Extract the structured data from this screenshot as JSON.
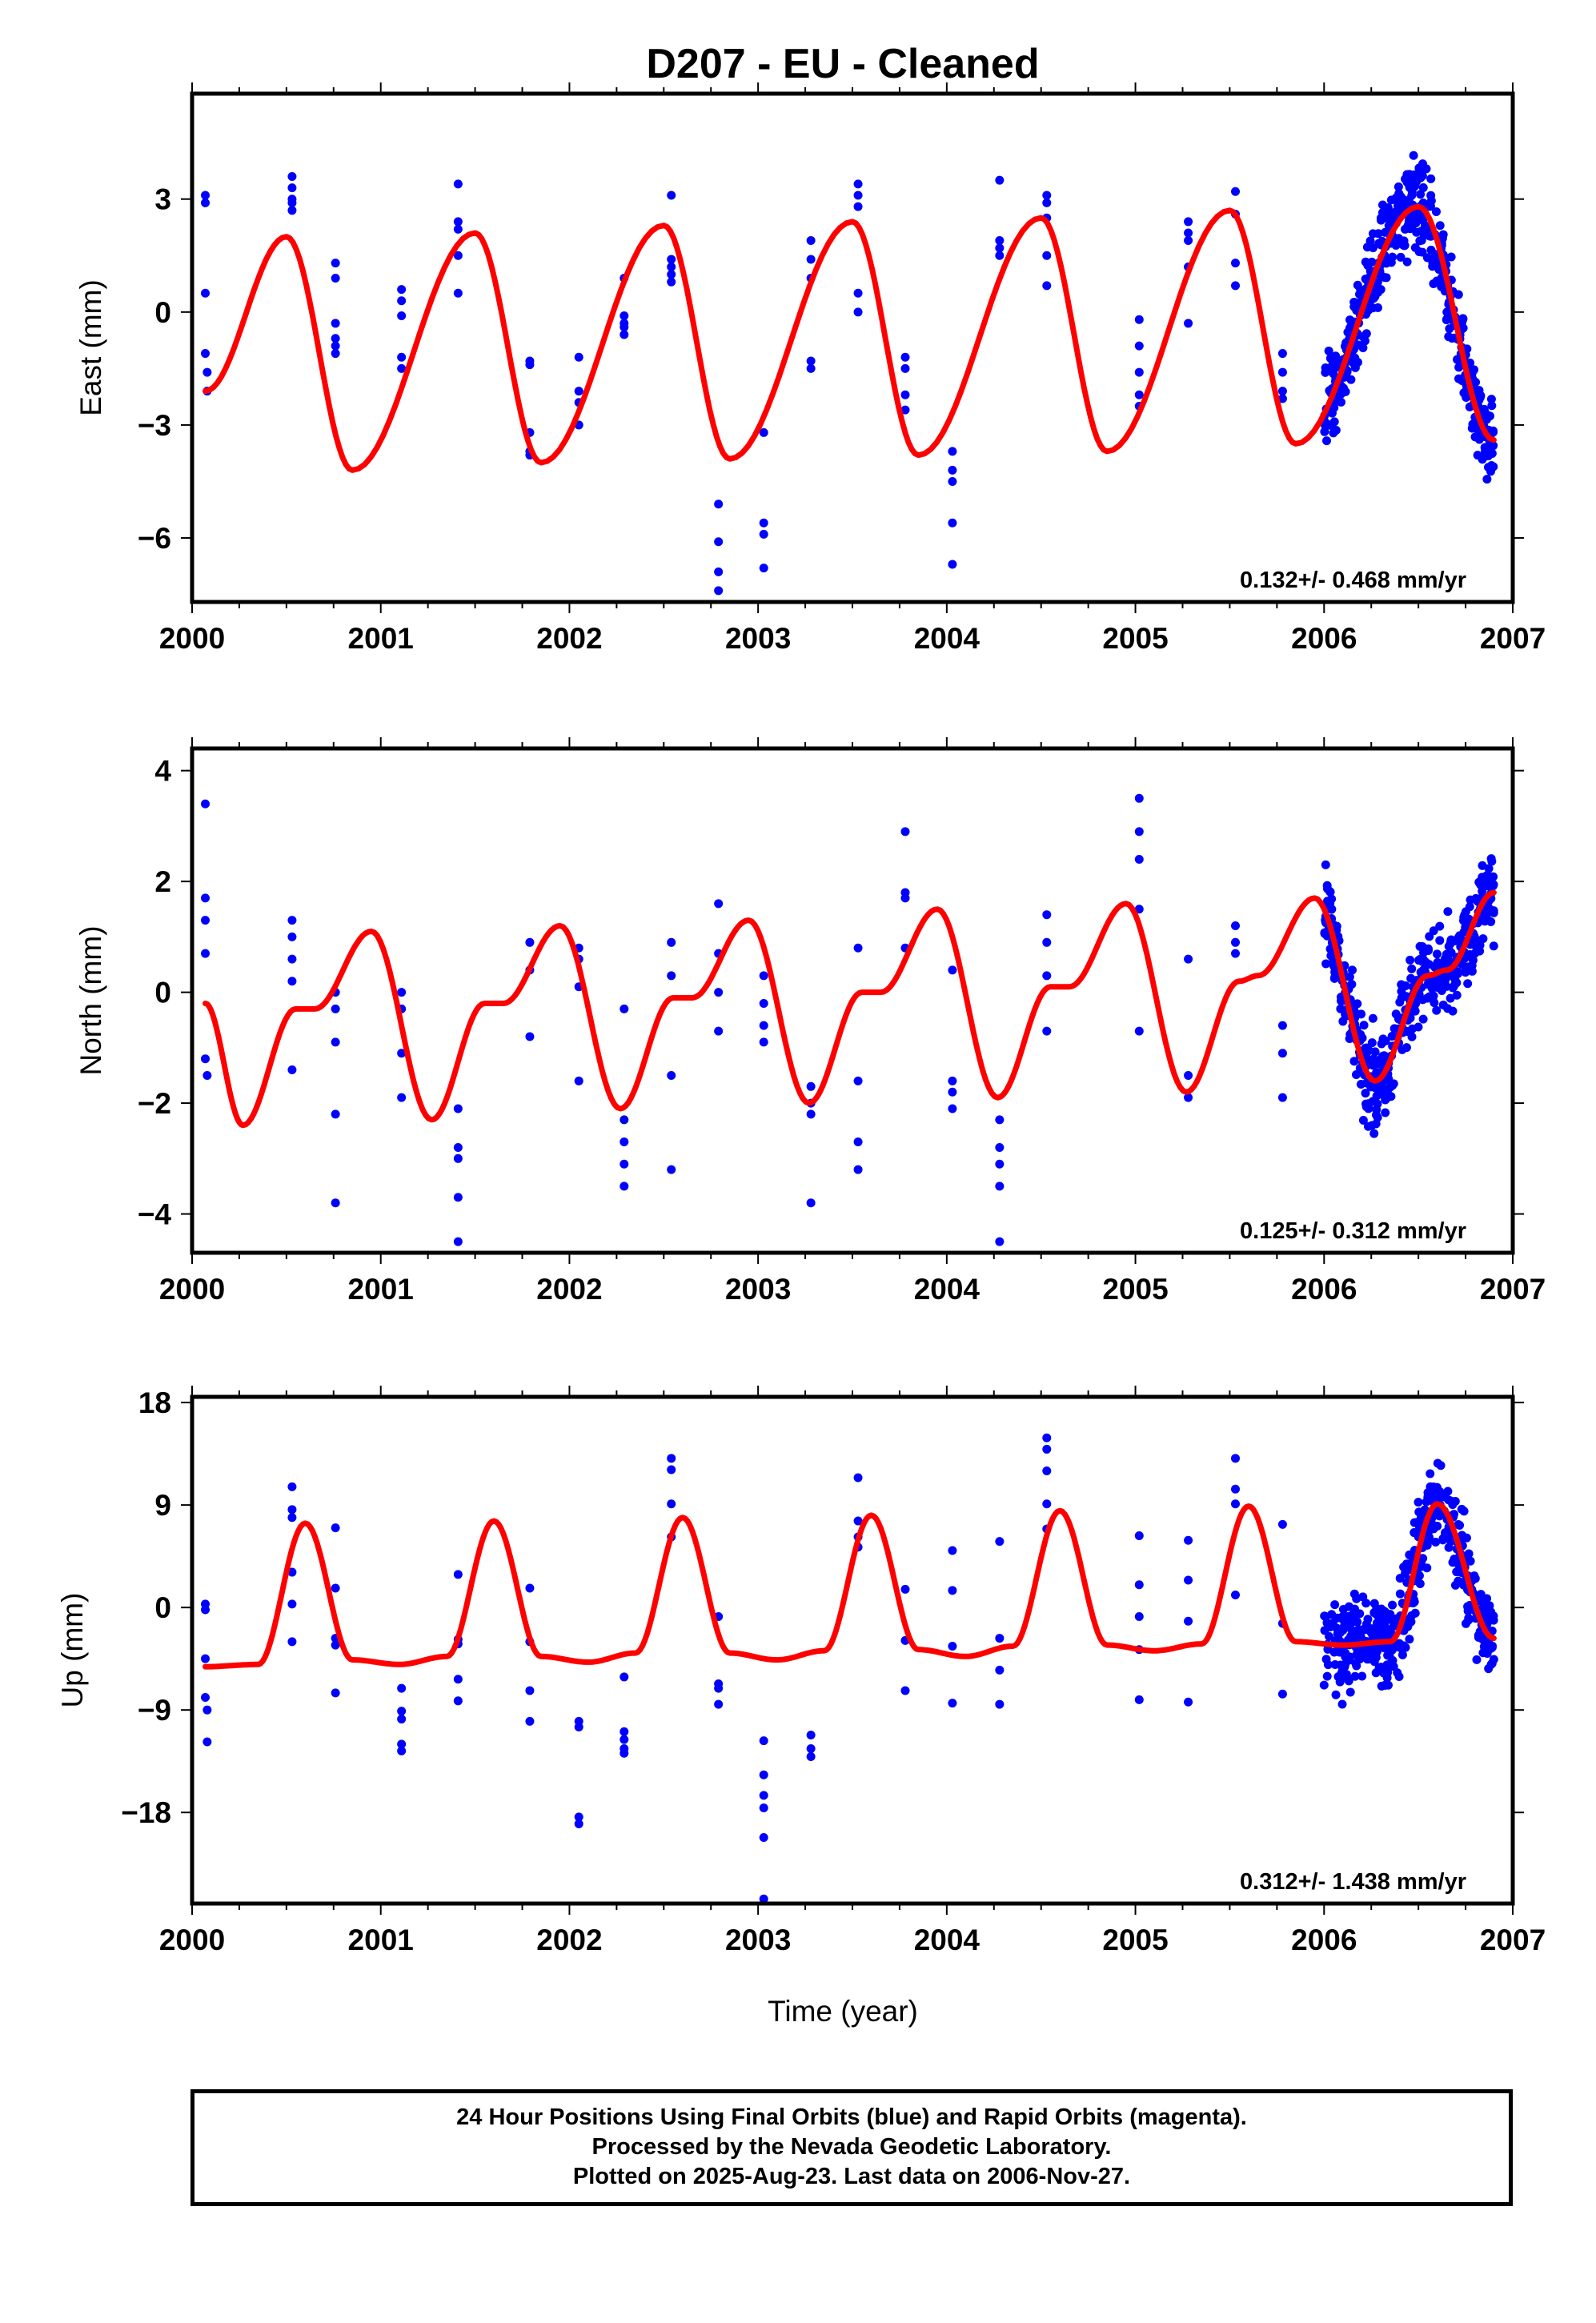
{
  "figure": {
    "title": "D207  - EU - Cleaned",
    "xlabel": "Time (year)",
    "footer": [
      "24 Hour Positions Using Final Orbits (blue) and Rapid Orbits (magenta).",
      "Processed by the Nevada Geodetic Laboratory.",
      "Plotted on 2025-Aug-23. Last data on 2006-Nov-27."
    ],
    "colors": {
      "points": "#0000ff",
      "model": "#ff0000",
      "frame": "#000000"
    }
  },
  "chart_data": [
    {
      "type": "scatter",
      "ylabel": "East (mm)",
      "rate_label": "0.132+/- 0.468 mm/yr",
      "xlim": [
        2000.0,
        2007.0
      ],
      "ylim": [
        -7.7,
        5.8
      ],
      "xticks": [
        2000,
        2001,
        2002,
        2003,
        2004,
        2005,
        2006,
        2007
      ],
      "yticks": [
        3,
        0,
        -3,
        -6
      ],
      "grid": false,
      "series": [
        {
          "role": "observations",
          "color": "#0000ff",
          "x": [
            2000.07,
            2000.07,
            2000.07,
            2000.07,
            2000.08,
            2000.08,
            2000.53,
            2000.53,
            2000.53,
            2000.53,
            2000.53,
            2000.76,
            2000.76,
            2000.76,
            2000.76,
            2000.76,
            2000.76,
            2001.11,
            2001.11,
            2001.11,
            2001.11,
            2001.11,
            2001.41,
            2001.41,
            2001.41,
            2001.41,
            2001.41,
            2001.79,
            2001.79,
            2001.79,
            2001.79,
            2001.79,
            2002.05,
            2002.05,
            2002.05,
            2002.05,
            2002.29,
            2002.29,
            2002.29,
            2002.29,
            2002.29,
            2002.54,
            2002.54,
            2002.54,
            2002.54,
            2002.54,
            2002.79,
            2002.79,
            2002.79,
            2002.79,
            2003.03,
            2003.03,
            2003.03,
            2003.03,
            2003.28,
            2003.28,
            2003.28,
            2003.28,
            2003.28,
            2003.53,
            2003.53,
            2003.53,
            2003.53,
            2003.53,
            2003.78,
            2003.78,
            2003.78,
            2003.78,
            2004.03,
            2004.03,
            2004.03,
            2004.03,
            2004.03,
            2004.28,
            2004.28,
            2004.28,
            2004.28,
            2004.53,
            2004.53,
            2004.53,
            2004.53,
            2004.53,
            2005.02,
            2005.02,
            2005.02,
            2005.02,
            2005.02,
            2005.28,
            2005.28,
            2005.28,
            2005.28,
            2005.28,
            2005.53,
            2005.53,
            2005.53,
            2005.53,
            2005.78,
            2005.78,
            2005.78,
            2005.78
          ],
          "y": [
            3.1,
            2.9,
            0.5,
            -1.1,
            -1.6,
            -2.1,
            3.6,
            3.3,
            3.0,
            2.7,
            2.9,
            1.3,
            0.9,
            -0.3,
            -0.7,
            -1.1,
            -0.9,
            0.6,
            0.3,
            -0.1,
            -1.2,
            -1.5,
            3.4,
            2.4,
            2.2,
            1.5,
            0.5,
            -1.3,
            -1.4,
            -3.2,
            -3.7,
            -3.8,
            -1.2,
            -2.1,
            -2.4,
            -3.0,
            0.9,
            -0.1,
            -0.4,
            -0.6,
            -0.3,
            3.1,
            1.4,
            1.2,
            1.0,
            0.8,
            -5.1,
            -6.1,
            -6.9,
            -7.4,
            -3.2,
            -5.6,
            -5.9,
            -6.8,
            1.9,
            1.4,
            0.9,
            -1.3,
            -1.5,
            3.4,
            3.1,
            2.8,
            0.5,
            0.0,
            -1.2,
            -1.5,
            -2.2,
            -2.6,
            -3.7,
            -4.2,
            -4.5,
            -5.6,
            -6.7,
            3.5,
            1.9,
            1.7,
            1.5,
            3.1,
            2.9,
            2.5,
            1.5,
            0.7,
            -0.2,
            -0.9,
            -1.6,
            -2.2,
            -2.5,
            2.4,
            2.1,
            1.9,
            1.2,
            -0.3,
            3.2,
            2.6,
            1.3,
            0.7,
            -1.1,
            -1.6,
            -2.1,
            -2.3
          ]
        },
        {
          "role": "observations-dense",
          "color": "#0000ff",
          "x_range": [
            2006.0,
            2006.9
          ],
          "count": 480,
          "description_free": true
        },
        {
          "role": "model",
          "color": "#ff0000",
          "x": [
            2000.07,
            2000.5,
            2000.85,
            2001.5,
            2001.85,
            2002.5,
            2002.85,
            2003.5,
            2003.85,
            2004.5,
            2004.85,
            2005.5,
            2005.85,
            2006.5,
            2006.9
          ],
          "y": [
            -2.1,
            2.0,
            -4.2,
            2.1,
            -4.0,
            2.3,
            -3.9,
            2.4,
            -3.8,
            2.5,
            -3.7,
            2.7,
            -3.5,
            2.8,
            -3.4
          ]
        }
      ]
    },
    {
      "type": "scatter",
      "ylabel": "North (mm)",
      "rate_label": "0.125+/- 0.312 mm/yr",
      "xlim": [
        2000.0,
        2007.0
      ],
      "ylim": [
        -4.7,
        4.4
      ],
      "xticks": [
        2000,
        2001,
        2002,
        2003,
        2004,
        2005,
        2006,
        2007
      ],
      "yticks": [
        4,
        2,
        0,
        -2,
        -4
      ],
      "grid": false,
      "series": [
        {
          "role": "observations",
          "color": "#0000ff",
          "x": [
            2000.07,
            2000.07,
            2000.07,
            2000.07,
            2000.07,
            2000.08,
            2000.53,
            2000.53,
            2000.53,
            2000.53,
            2000.53,
            2000.76,
            2000.76,
            2000.76,
            2000.76,
            2000.76,
            2001.11,
            2001.11,
            2001.11,
            2001.11,
            2001.41,
            2001.41,
            2001.41,
            2001.41,
            2001.41,
            2001.79,
            2001.79,
            2001.79,
            2002.05,
            2002.05,
            2002.05,
            2002.05,
            2002.29,
            2002.29,
            2002.29,
            2002.29,
            2002.29,
            2002.54,
            2002.54,
            2002.54,
            2002.54,
            2002.79,
            2002.79,
            2002.79,
            2002.79,
            2003.03,
            2003.03,
            2003.03,
            2003.03,
            2003.28,
            2003.28,
            2003.28,
            2003.28,
            2003.53,
            2003.53,
            2003.53,
            2003.53,
            2003.78,
            2003.78,
            2003.78,
            2003.78,
            2004.03,
            2004.03,
            2004.03,
            2004.03,
            2004.28,
            2004.28,
            2004.28,
            2004.28,
            2004.28,
            2004.53,
            2004.53,
            2004.53,
            2004.53,
            2005.02,
            2005.02,
            2005.02,
            2005.02,
            2005.02,
            2005.28,
            2005.28,
            2005.28,
            2005.53,
            2005.53,
            2005.53,
            2005.78,
            2005.78,
            2005.78
          ],
          "y": [
            3.4,
            1.7,
            1.3,
            0.7,
            -1.2,
            -1.5,
            1.3,
            1.0,
            0.6,
            0.2,
            -1.4,
            0.0,
            -0.3,
            -0.9,
            -2.2,
            -3.8,
            0.0,
            -0.3,
            -1.1,
            -1.9,
            -2.1,
            -2.8,
            -3.0,
            -3.7,
            -4.5,
            0.9,
            0.4,
            -0.8,
            0.8,
            0.6,
            0.1,
            -1.6,
            -0.3,
            -2.3,
            -2.7,
            -3.1,
            -3.5,
            0.9,
            0.3,
            -1.5,
            -3.2,
            1.6,
            0.7,
            0.0,
            -0.7,
            0.3,
            -0.2,
            -0.6,
            -0.9,
            -1.7,
            -2.0,
            -2.2,
            -3.8,
            0.8,
            -1.6,
            -2.7,
            -3.2,
            2.9,
            1.8,
            1.7,
            0.8,
            0.4,
            -1.6,
            -1.8,
            -2.1,
            -2.3,
            -2.8,
            -3.1,
            -3.5,
            -4.5,
            1.4,
            0.9,
            0.3,
            -0.7,
            3.5,
            2.9,
            2.4,
            1.5,
            -0.7,
            0.6,
            -1.5,
            -1.9,
            1.2,
            0.9,
            0.7,
            -0.6,
            -1.1,
            -1.9
          ]
        },
        {
          "role": "observations-dense",
          "color": "#0000ff",
          "x_range": [
            2006.0,
            2006.9
          ],
          "count": 480
        },
        {
          "role": "model",
          "color": "#ff0000",
          "x": [
            2000.07,
            2000.27,
            2000.55,
            2000.65,
            2000.95,
            2001.27,
            2001.55,
            2001.65,
            2001.95,
            2002.27,
            2002.55,
            2002.65,
            2002.95,
            2003.27,
            2003.55,
            2003.65,
            2003.95,
            2004.27,
            2004.55,
            2004.65,
            2004.95,
            2005.27,
            2005.55,
            2005.65,
            2005.95,
            2006.27,
            2006.55,
            2006.65,
            2006.9
          ],
          "y": [
            -0.2,
            -2.4,
            -0.3,
            -0.3,
            1.1,
            -2.3,
            -0.2,
            -0.2,
            1.2,
            -2.1,
            -0.1,
            -0.1,
            1.3,
            -2.0,
            0.0,
            0.0,
            1.5,
            -1.9,
            0.1,
            0.1,
            1.6,
            -1.8,
            0.2,
            0.3,
            1.7,
            -1.6,
            0.3,
            0.4,
            1.8
          ]
        }
      ]
    },
    {
      "type": "scatter",
      "ylabel": "Up (mm)",
      "rate_label": "0.312+/- 1.438 mm/yr",
      "xlim": [
        2000.0,
        2007.0
      ],
      "ylim": [
        -26.0,
        18.5
      ],
      "xticks": [
        2000,
        2001,
        2002,
        2003,
        2004,
        2005,
        2006,
        2007
      ],
      "yticks": [
        18,
        9,
        0,
        -9,
        -18
      ],
      "grid": false,
      "series": [
        {
          "role": "observations",
          "color": "#0000ff",
          "x": [
            2000.07,
            2000.07,
            2000.07,
            2000.07,
            2000.08,
            2000.08,
            2000.53,
            2000.53,
            2000.53,
            2000.53,
            2000.53,
            2000.53,
            2000.76,
            2000.76,
            2000.76,
            2000.76,
            2000.76,
            2001.11,
            2001.11,
            2001.11,
            2001.11,
            2001.11,
            2001.41,
            2001.41,
            2001.41,
            2001.41,
            2001.41,
            2001.79,
            2001.79,
            2001.79,
            2001.79,
            2002.05,
            2002.05,
            2002.05,
            2002.05,
            2002.29,
            2002.29,
            2002.29,
            2002.29,
            2002.29,
            2002.54,
            2002.54,
            2002.54,
            2002.54,
            2002.79,
            2002.79,
            2002.79,
            2002.79,
            2003.03,
            2003.03,
            2003.03,
            2003.03,
            2003.03,
            2003.03,
            2003.28,
            2003.28,
            2003.28,
            2003.53,
            2003.53,
            2003.53,
            2003.53,
            2003.78,
            2003.78,
            2003.78,
            2004.03,
            2004.03,
            2004.03,
            2004.03,
            2004.28,
            2004.28,
            2004.28,
            2004.28,
            2004.53,
            2004.53,
            2004.53,
            2004.53,
            2004.53,
            2005.02,
            2005.02,
            2005.02,
            2005.02,
            2005.02,
            2005.28,
            2005.28,
            2005.28,
            2005.28,
            2005.53,
            2005.53,
            2005.53,
            2005.53,
            2005.78,
            2005.78,
            2005.78
          ],
          "y": [
            0.3,
            -0.2,
            -4.5,
            -7.9,
            -9.0,
            -11.8,
            10.6,
            8.6,
            7.9,
            3.1,
            0.3,
            -3.0,
            7.0,
            1.7,
            -2.7,
            -3.3,
            -7.5,
            -7.1,
            -9.1,
            -9.8,
            -12.0,
            -12.6,
            2.9,
            -2.8,
            -3.2,
            -6.3,
            -8.2,
            1.7,
            -3.0,
            -7.3,
            -10.0,
            -10.0,
            -10.5,
            -18.4,
            -19.0,
            -6.1,
            -10.9,
            -11.6,
            -12.4,
            -12.8,
            13.1,
            12.1,
            9.1,
            6.2,
            -0.8,
            -6.7,
            -7.1,
            -8.5,
            -11.7,
            -14.7,
            -16.5,
            -17.6,
            -20.2,
            -25.6,
            -11.2,
            -12.4,
            -13.1,
            11.4,
            7.6,
            6.2,
            5.3,
            1.6,
            -2.9,
            -7.3,
            5.0,
            1.5,
            -3.4,
            -8.4,
            5.8,
            -2.7,
            -5.5,
            -8.5,
            14.9,
            13.9,
            12.0,
            9.1,
            6.9,
            6.3,
            2.0,
            -0.8,
            -3.7,
            -8.1,
            5.9,
            2.4,
            -1.2,
            -8.3,
            13.1,
            10.4,
            9.1,
            1.1,
            7.3,
            -1.4,
            -7.6
          ]
        },
        {
          "role": "observations-dense",
          "color": "#0000ff",
          "x_range": [
            2006.0,
            2006.9
          ],
          "count": 480
        },
        {
          "role": "model",
          "color": "#ff0000",
          "x": [
            2000.07,
            2000.35,
            2000.6,
            2000.85,
            2001.1,
            2001.35,
            2001.6,
            2001.85,
            2002.1,
            2002.35,
            2002.6,
            2002.85,
            2003.1,
            2003.35,
            2003.6,
            2003.85,
            2004.1,
            2004.35,
            2004.6,
            2004.85,
            2005.1,
            2005.35,
            2005.6,
            2005.85,
            2006.1,
            2006.35,
            2006.6,
            2006.9
          ],
          "y": [
            -5.2,
            -5.0,
            7.4,
            -4.6,
            -5.0,
            -4.3,
            7.6,
            -4.3,
            -4.8,
            -4.0,
            7.9,
            -4.0,
            -4.6,
            -3.8,
            8.1,
            -3.7,
            -4.3,
            -3.4,
            8.5,
            -3.3,
            -3.8,
            -3.2,
            8.9,
            -3.0,
            -3.3,
            -3.0,
            9.1,
            -2.7
          ]
        }
      ]
    }
  ]
}
